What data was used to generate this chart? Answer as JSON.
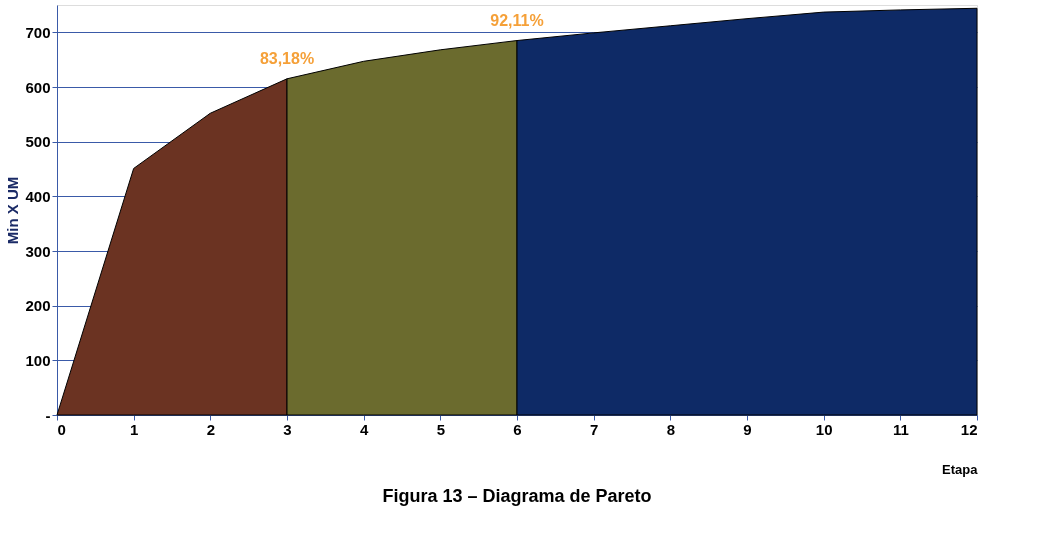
{
  "chart_data": {
    "type": "area",
    "title": "Figura 13 – Diagrama de Pareto",
    "xlabel": "Etapa",
    "ylabel": "Min X UM",
    "series": [
      {
        "color": "#6b3322",
        "x": [
          0,
          1,
          2,
          3
        ],
        "values": [
          0,
          451,
          552,
          615
        ]
      },
      {
        "color": "#6b6b2e",
        "x": [
          3,
          4,
          5,
          6
        ],
        "values": [
          615,
          647,
          668,
          685
        ]
      },
      {
        "color": "#0e2a66",
        "x": [
          6,
          7,
          8,
          9,
          10,
          11,
          12
        ],
        "values": [
          685,
          699,
          712,
          725,
          737,
          741,
          744
        ]
      }
    ],
    "annotations": [
      {
        "text": "83,18%",
        "x": 3,
        "y": 615
      },
      {
        "text": "92,11%",
        "x": 6,
        "y": 685
      }
    ],
    "xlim": [
      0,
      12
    ],
    "xticks": [
      0,
      1,
      2,
      3,
      4,
      5,
      6,
      7,
      8,
      9,
      10,
      11,
      12
    ],
    "ylim": [
      0,
      750
    ],
    "yticks": [
      {
        "value": 0,
        "label": "-"
      },
      100,
      200,
      300,
      400,
      500,
      600,
      700
    ],
    "grid": "y"
  }
}
